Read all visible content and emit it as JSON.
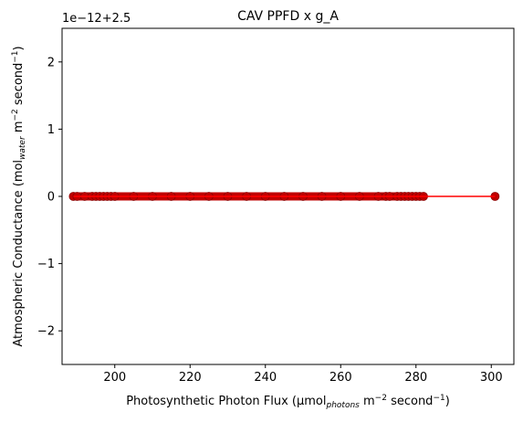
{
  "chart_data": {
    "type": "scatter",
    "title": "CAV PPFD x g_A",
    "xlabel": {
      "prefix": "Photosynthetic Photon Flux (µmol",
      "sub": "photons",
      "mid": " m",
      "sup1": "−2",
      "mid2": " second",
      "sup2": "−1",
      "suffix": ")"
    },
    "ylabel": {
      "prefix": "Atmospheric Conductance (mol",
      "sub": "water",
      "mid": " m",
      "sup1": "−2",
      "mid2": " second",
      "sup2": "−1",
      "suffix": ")"
    },
    "offset_text": "1e−12+2.5",
    "xlim": [
      186,
      306
    ],
    "ylim": [
      -2.5,
      2.5
    ],
    "xticks": [
      200,
      220,
      240,
      260,
      280,
      300
    ],
    "yticks": [
      -2,
      -1,
      0,
      1,
      2
    ],
    "ytick_labels": [
      "−2",
      "−1",
      "0",
      "1",
      "2"
    ],
    "grid": false,
    "series": [
      {
        "kind": "points",
        "color": "#c00000",
        "x": [
          189,
          190,
          192,
          194,
          195,
          196,
          197,
          198,
          199,
          200,
          205,
          210,
          215,
          220,
          225,
          230,
          235,
          240,
          245,
          250,
          255,
          260,
          265,
          270,
          272,
          273,
          275,
          276,
          277,
          278,
          279,
          280,
          281,
          282,
          301
        ],
        "y": [
          0,
          0,
          0,
          0,
          0,
          0,
          0,
          0,
          0,
          0,
          0,
          0,
          0,
          0,
          0,
          0,
          0,
          0,
          0,
          0,
          0,
          0,
          0,
          0,
          0,
          0,
          0,
          0,
          0,
          0,
          0,
          0,
          0,
          0,
          0
        ]
      },
      {
        "kind": "line",
        "color": "#ff0000",
        "x": [
          189,
          301
        ],
        "y": [
          0,
          0
        ]
      }
    ]
  }
}
